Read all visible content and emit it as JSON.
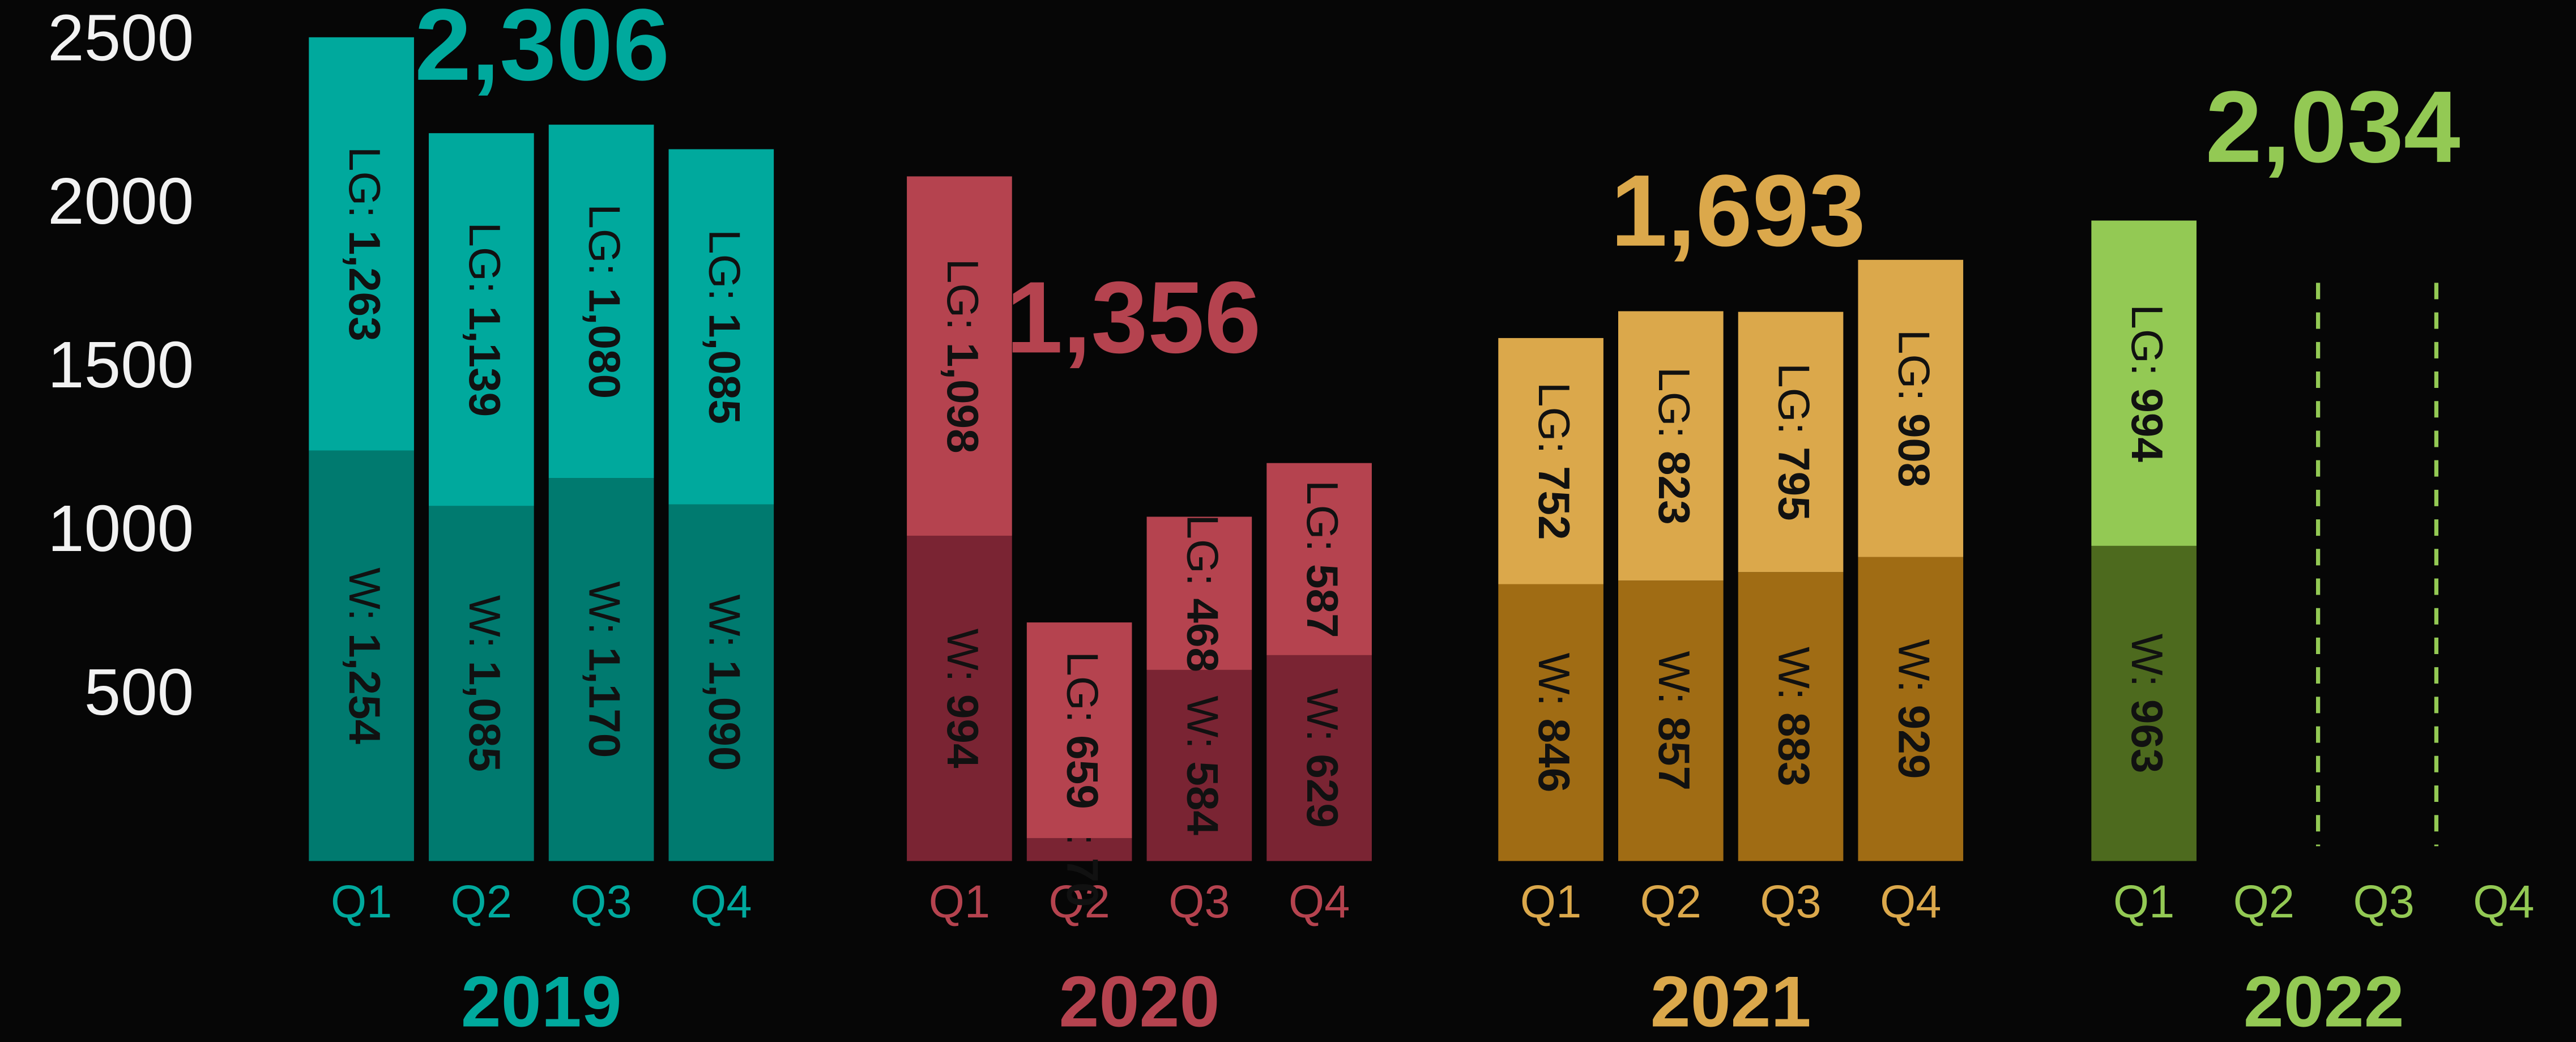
{
  "chart_data": {
    "type": "bar",
    "stacked": true,
    "ylim": [
      0,
      2630
    ],
    "yticks": [
      500,
      1000,
      1500,
      2000,
      2500
    ],
    "grid": false,
    "groups": [
      {
        "name": "2019",
        "total": {
          "value": 2306,
          "label": "2,306"
        },
        "color": "#00a99d",
        "categories": [
          "Q1",
          "Q2",
          "Q3",
          "Q4"
        ],
        "series": [
          {
            "name": "W",
            "color": "#007a6f",
            "values": [
              1254,
              1085,
              1170,
              1090
            ],
            "value_labels": [
              "W: 1,254",
              "W: 1,085",
              "W: 1,170",
              "W: 1,090"
            ]
          },
          {
            "name": "LG",
            "color": "#00a99d",
            "values": [
              1263,
              1139,
              1080,
              1085
            ],
            "value_labels": [
              "LG: 1,263",
              "LG: 1,139",
              "LG: 1,080",
              "LG: 1,085"
            ]
          }
        ]
      },
      {
        "name": "2020",
        "total": {
          "value": 1356,
          "label": "1,356"
        },
        "color": "#b5434f",
        "categories": [
          "Q1",
          "Q2",
          "Q3",
          "Q4"
        ],
        "series": [
          {
            "name": "W",
            "color": "#7a2433",
            "values": [
              994,
              70,
              584,
              629
            ],
            "value_labels": [
              "W: 994",
              "W: 70",
              "W: 584",
              "W: 629"
            ]
          },
          {
            "name": "LG",
            "color": "#b5434f",
            "values": [
              1098,
              659,
              468,
              587
            ],
            "value_labels": [
              "LG: 1,098",
              "LG: 659",
              "LG: 468",
              "LG: 587"
            ]
          }
        ]
      },
      {
        "name": "2021",
        "total": {
          "value": 1693,
          "label": "1,693"
        },
        "color": "#dba84b",
        "categories": [
          "Q1",
          "Q2",
          "Q3",
          "Q4"
        ],
        "series": [
          {
            "name": "W",
            "color": "#a06c14",
            "values": [
              846,
              857,
              883,
              929
            ],
            "value_labels": [
              "W: 846",
              "W: 857",
              "W: 883",
              "W: 929"
            ]
          },
          {
            "name": "LG",
            "color": "#dba84b",
            "values": [
              752,
              823,
              795,
              908
            ],
            "value_labels": [
              "LG: 752",
              "LG: 823",
              "LG: 795",
              "LG: 908"
            ]
          }
        ]
      },
      {
        "name": "2022",
        "total": {
          "value": 2034,
          "label": "2,034"
        },
        "color": "#93c954",
        "categories": [
          "Q1",
          "Q2",
          "Q3",
          "Q4"
        ],
        "series": [
          {
            "name": "W",
            "color": "#4d6a1e",
            "values": [
              963,
              null,
              null,
              null
            ],
            "value_labels": [
              "W: 963",
              null,
              null,
              null
            ]
          },
          {
            "name": "LG",
            "color": "#93c954",
            "values": [
              994,
              null,
              null,
              null
            ],
            "value_labels": [
              "LG: 994",
              null,
              null,
              null
            ]
          }
        ]
      }
    ]
  }
}
